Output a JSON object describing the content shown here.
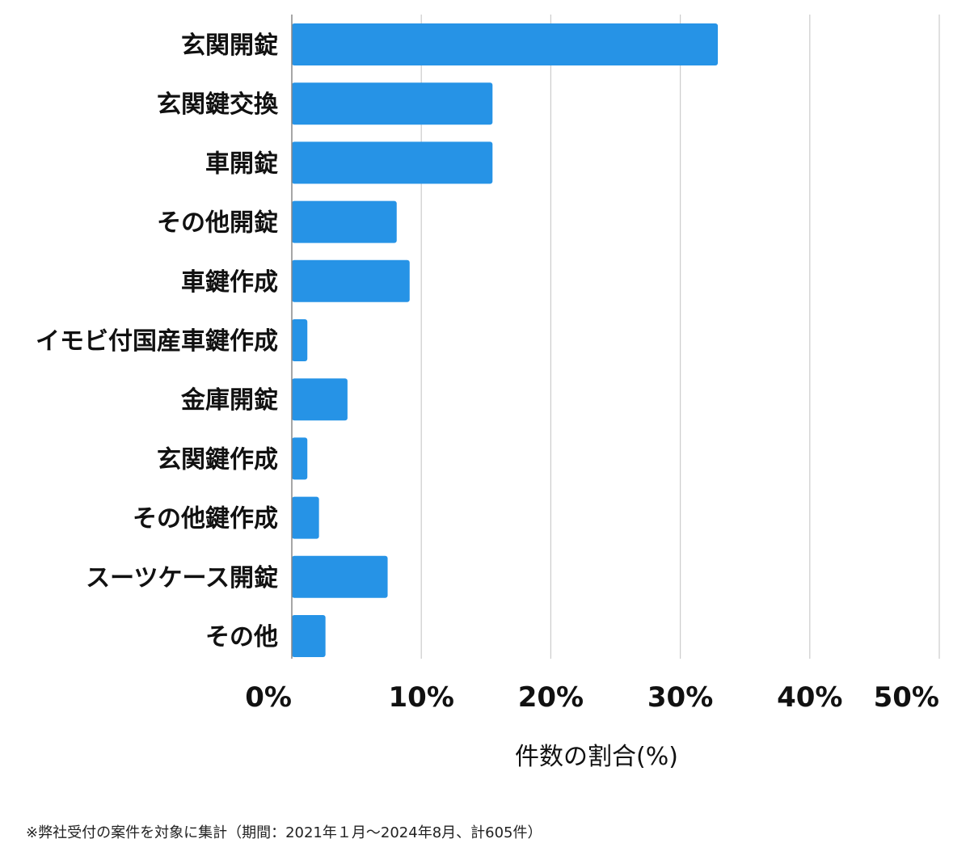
{
  "chart_data": {
    "type": "bar",
    "orientation": "horizontal",
    "categories": [
      "玄関開錠",
      "玄関鍵交換",
      "車開錠",
      "その他開錠",
      "車鍵作成",
      "イモビ付国産車鍵作成",
      "金庫開錠",
      "玄関鍵作成",
      "その他鍵作成",
      "スーツケース開錠",
      "その他"
    ],
    "values": [
      32.9,
      15.5,
      15.5,
      8.1,
      9.1,
      1.2,
      4.3,
      1.2,
      2.1,
      7.4,
      2.6
    ],
    "xlim": [
      0,
      50
    ],
    "xticks": [
      0,
      10,
      20,
      30,
      40,
      50
    ],
    "xtick_labels": [
      "0%",
      "10%",
      "20%",
      "30%",
      "40%",
      "50%"
    ],
    "xlabel": "件数の割合(%)",
    "ylabel": "",
    "title": "",
    "grid": true,
    "bar_color": "#2693e6",
    "grid_color": "#cccccc"
  },
  "footnote": "※弊社受付の案件を対象に集計（期間：2021年１月〜2024年8月、計605件）"
}
